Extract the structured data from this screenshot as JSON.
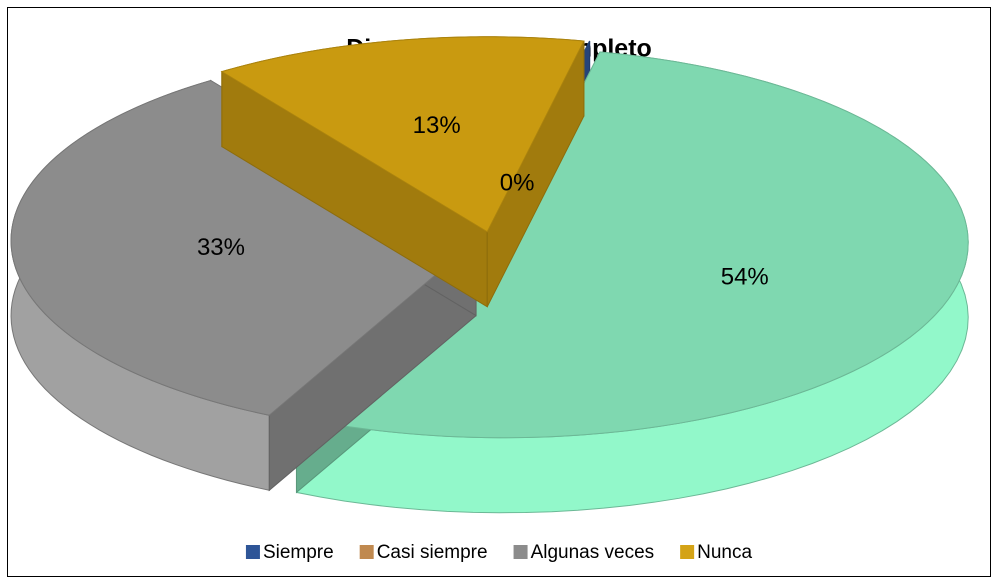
{
  "chart_data": {
    "type": "pie3d",
    "title": "Dice su nombre completo",
    "categories": [
      "Siempre",
      "Casi siempre",
      "Algunas veces",
      "Nunca"
    ],
    "values": [
      0,
      54,
      33,
      13
    ],
    "value_labels": [
      "0%",
      "54%",
      "33%",
      "13%"
    ],
    "colors": [
      "#2e5597",
      "#c0894f",
      "#8c8c8c",
      "#d4a316"
    ],
    "slice_colors": [
      "#2e5597",
      "#7fd8b0",
      "#8c8c8c",
      "#c99a10"
    ],
    "legend": "bottom"
  }
}
